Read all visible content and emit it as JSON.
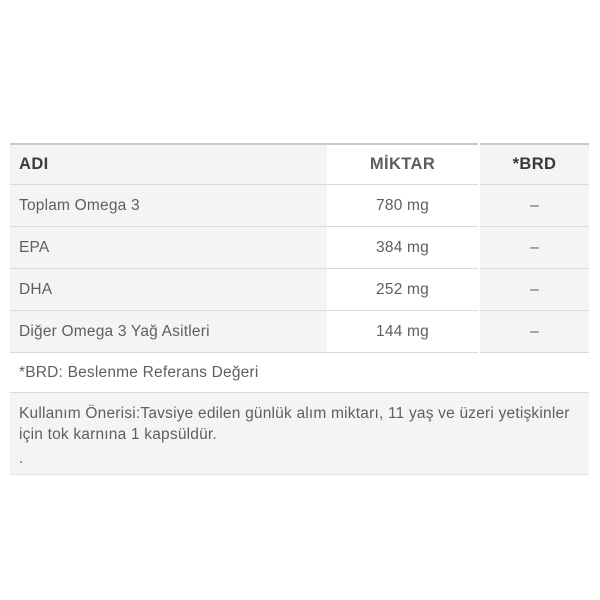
{
  "table": {
    "columns": [
      {
        "label": "ADI"
      },
      {
        "label": "MİKTAR"
      },
      {
        "label": "*BRD"
      }
    ],
    "rows": [
      {
        "name": "Toplam Omega 3",
        "amount": "780 mg",
        "brd": "–"
      },
      {
        "name": "EPA",
        "amount": "384 mg",
        "brd": "–"
      },
      {
        "name": "DHA",
        "amount": "252 mg",
        "brd": "–"
      },
      {
        "name": "Diğer Omega 3 Yağ Asitleri",
        "amount": "144 mg",
        "brd": "–"
      }
    ],
    "footnote": "*BRD: Beslenme Referans Değeri",
    "usage_note": "Kullanım Önerisi:Tavsiye edilen günlük alım miktarı, 11 yaş ve üzeri yetişkinler için tok karnına 1 kapsüldür.",
    "usage_note_trailing": "."
  },
  "colors": {
    "stripe_bg": "#f4f4f4",
    "row_border": "#dadada",
    "top_border": "#c9c9c9",
    "header_text": "#3d3d3d",
    "body_text": "#5f5f5f"
  }
}
